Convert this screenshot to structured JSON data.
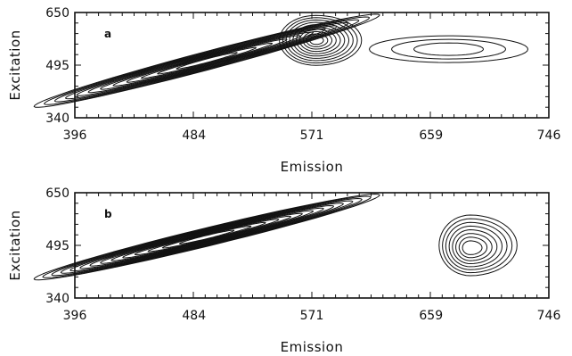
{
  "chart_data": [
    {
      "type": "contour",
      "panel_label": "a",
      "xlabel": "Emission",
      "ylabel": "Excitation",
      "xlim": [
        396,
        746
      ],
      "ylim": [
        340,
        650
      ],
      "x_ticks": [
        396,
        484,
        571,
        659,
        746
      ],
      "y_ticks": [
        340,
        495,
        650
      ],
      "features": [
        {
          "name": "scatter-ridge",
          "x_range": [
            396,
            640
          ],
          "y_range": [
            400,
            650
          ],
          "contour_levels": 12
        },
        {
          "name": "peak",
          "x": 574,
          "y": 568,
          "contour_levels": 10
        },
        {
          "name": "shoulder-band",
          "x_range": [
            620,
            718
          ],
          "y": 540,
          "contour_levels": 3
        }
      ]
    },
    {
      "type": "contour",
      "panel_label": "b",
      "xlabel": "Emission",
      "ylabel": "Excitation",
      "xlim": [
        396,
        746
      ],
      "ylim": [
        340,
        650
      ],
      "x_ticks": [
        396,
        484,
        571,
        659,
        746
      ],
      "y_ticks": [
        340,
        495,
        650
      ],
      "features": [
        {
          "name": "scatter-ridge",
          "x_range": [
            396,
            620
          ],
          "y_range": [
            430,
            650
          ],
          "contour_levels": 14
        },
        {
          "name": "peak",
          "x": 688,
          "y": 495,
          "contour_levels": 8
        }
      ]
    }
  ]
}
